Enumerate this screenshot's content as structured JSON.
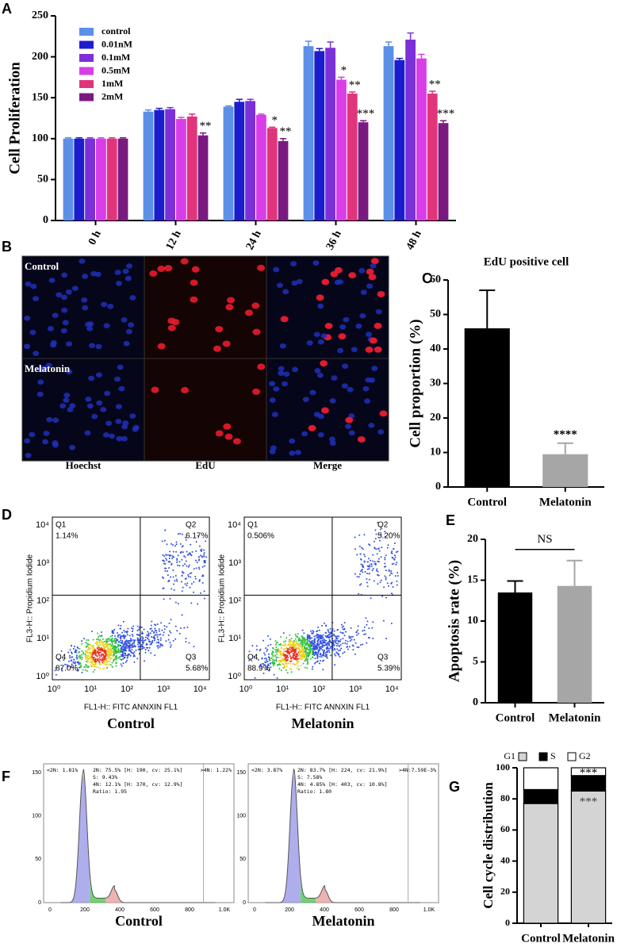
{
  "panel_labels": [
    "A",
    "B",
    "C",
    "D",
    "E",
    "F",
    "G"
  ],
  "chart_data": [
    {
      "type": "grouped_bar",
      "ylabel": "Cell Proliferation",
      "categories": [
        "0 h",
        "12 h",
        "24 h",
        "36 h",
        "48 h"
      ],
      "ylim": [
        0,
        250
      ],
      "yticks": [
        0,
        50,
        100,
        150,
        200,
        250
      ],
      "series": [
        {
          "name": "control",
          "color": "#5b8fe8",
          "values": [
            100,
            133,
            139,
            213,
            213
          ],
          "errors": [
            1,
            2,
            1,
            6,
            5
          ],
          "significance": [
            null,
            null,
            null,
            null,
            null
          ]
        },
        {
          "name": "0.01nM",
          "color": "#1c1ccf",
          "values": [
            100,
            135,
            145,
            207,
            196
          ],
          "errors": [
            1,
            2,
            3,
            3,
            2
          ],
          "significance": [
            null,
            null,
            null,
            null,
            null
          ]
        },
        {
          "name": "0.1mM",
          "color": "#7b30d8",
          "values": [
            100,
            136,
            146,
            211,
            221
          ],
          "errors": [
            1,
            2,
            2,
            7,
            8
          ],
          "significance": [
            null,
            null,
            null,
            null,
            null
          ]
        },
        {
          "name": "0.5mM",
          "color": "#d83ee8",
          "values": [
            100,
            124,
            129,
            172,
            198
          ],
          "errors": [
            1,
            2,
            1,
            3,
            5
          ],
          "significance": [
            null,
            null,
            null,
            "*",
            null
          ]
        },
        {
          "name": "1mM",
          "color": "#e0347b",
          "values": [
            100,
            127,
            113,
            155,
            155
          ],
          "errors": [
            1,
            3,
            1,
            2,
            3
          ],
          "significance": [
            null,
            null,
            "*",
            "**",
            "**"
          ]
        },
        {
          "name": "2mM",
          "color": "#7a1a80",
          "values": [
            100,
            104,
            97,
            120,
            119
          ],
          "errors": [
            1,
            3,
            3,
            2,
            3
          ],
          "significance": [
            null,
            "**",
            "**",
            "***",
            "***"
          ]
        }
      ]
    },
    {
      "type": "bar",
      "title": "EdU positive cell",
      "ylabel": "Cell proportion  (%)",
      "categories": [
        "Control",
        "Melatonin"
      ],
      "values": [
        46,
        9.5
      ],
      "errors": [
        11,
        3.2
      ],
      "colors": [
        "#000000",
        "#a6a6a6"
      ],
      "significance": [
        null,
        "****"
      ],
      "ylim": [
        0,
        60
      ],
      "yticks": [
        0,
        10,
        20,
        30,
        40,
        50,
        60
      ]
    },
    {
      "type": "bar",
      "ylabel": "Apoptosis rate (%)",
      "categories": [
        "Control",
        "Melatonin"
      ],
      "values": [
        13.5,
        14.3
      ],
      "errors": [
        1.4,
        3.1
      ],
      "colors": [
        "#000000",
        "#a6a6a6"
      ],
      "annotation": "NS",
      "ylim": [
        0,
        20
      ],
      "yticks": [
        0,
        5,
        10,
        15,
        20
      ]
    },
    {
      "type": "stacked_bar",
      "ylabel": "Cell cycle distribution",
      "categories": [
        "Control",
        "Melatonin"
      ],
      "ylim": [
        0,
        100
      ],
      "yticks": [
        0,
        20,
        40,
        60,
        80,
        100
      ],
      "series": [
        {
          "name": "G1",
          "color": "#d4d4d4",
          "values": [
            77,
            85
          ],
          "significance": [
            null,
            "***"
          ]
        },
        {
          "name": "S",
          "color": "#000000",
          "values": [
            9,
            10
          ],
          "significance": [
            null,
            null
          ]
        },
        {
          "name": "G2",
          "color": "#ffffff",
          "values": [
            14,
            5
          ],
          "significance": [
            null,
            "***"
          ]
        }
      ]
    }
  ],
  "microscopy": {
    "rows": [
      "Control",
      "Melatonin"
    ],
    "columns": [
      "Hoechst",
      "EdU",
      "Merge"
    ]
  },
  "flow": {
    "x_label": "FL1-H:: FITC  ANNXIN FL1",
    "y_label": "FL3-H:: Propidium Iodide",
    "ticks": [
      "10⁰",
      "10¹",
      "10²",
      "10³",
      "10⁴"
    ],
    "plots": [
      {
        "title": "Control",
        "quadrants": [
          "Q1",
          "Q2",
          "Q3",
          "Q4"
        ],
        "percentages": [
          "1.14%",
          "6.17%",
          "5.68%",
          "87.0%"
        ]
      },
      {
        "title": "Melatonin",
        "quadrants": [
          "Q1",
          "Q2",
          "Q3",
          "Q4"
        ],
        "percentages": [
          "0.506%",
          "5.20%",
          "5.39%",
          "88.9%"
        ]
      }
    ]
  },
  "histograms": {
    "xticks": [
      "0",
      "200",
      "400",
      "600",
      "800",
      "1.0K"
    ],
    "yticks": [
      "0",
      "50",
      "100",
      "150"
    ],
    "plots": [
      {
        "title": "Control",
        "low": "<2N: 1.81%",
        "high": ">4N: 1.22%",
        "stats": [
          "2N: 75.5%   [H: 190, cv: 25.1%]",
          "S: 9.43%",
          "4N: 12.1%   [H: 370, cv: 12.9%]",
          "Ratio: 1.95"
        ]
      },
      {
        "title": "Melatonin",
        "low": "<2N: 3.87%",
        "high": ">4N:7.59E-3%",
        "stats": [
          "2N: 83.7%   [H: 224, cv: 21.9%]",
          "S: 7.58%",
          "4N: 4.85%   [H: 403, cv: 10.8%]",
          "Ratio: 1.80"
        ]
      }
    ]
  }
}
